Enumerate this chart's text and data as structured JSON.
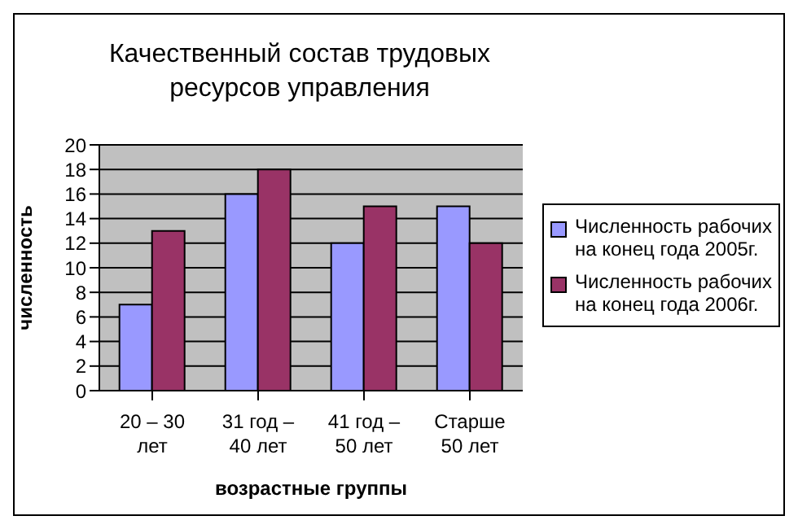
{
  "chart_data": {
    "type": "bar",
    "title": "Качественный состав трудовых ресурсов управления",
    "xlabel": "возрастные группы",
    "ylabel": "численность",
    "categories": [
      "20 – 30 лет",
      "31 год – 40 лет",
      "41 год – 50 лет",
      "Старше 50 лет"
    ],
    "series": [
      {
        "name": "Численность рабочих на конец года 2005г.",
        "color": "#9999ff",
        "values": [
          7,
          16,
          12,
          15
        ]
      },
      {
        "name": "Численность рабочих на конец года 2006г.",
        "color": "#993366",
        "values": [
          13,
          18,
          15,
          12
        ]
      }
    ],
    "ylim": [
      0,
      20
    ],
    "yticks": [
      0,
      2,
      4,
      6,
      8,
      10,
      12,
      14,
      16,
      18,
      20
    ],
    "grid": "y",
    "legend": "right"
  }
}
